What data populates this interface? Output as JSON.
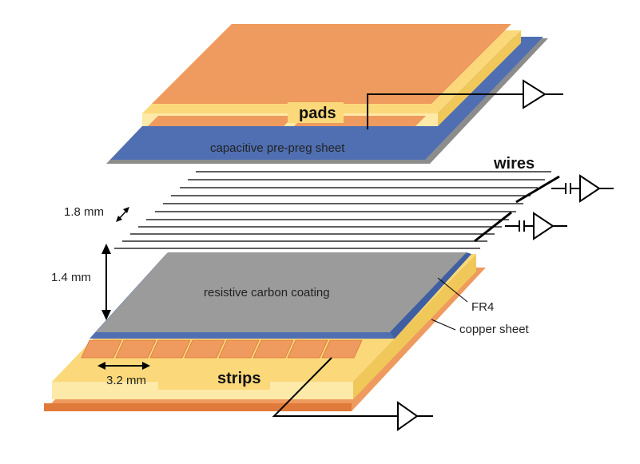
{
  "labels": {
    "pads": "pads",
    "prepreg": "capacitive pre-preg sheet",
    "wires": "wires",
    "wire_pitch": "1.8 mm",
    "gap": "1.4 mm",
    "coating": "resistive carbon coating",
    "fr4": "FR4",
    "copper": "copper sheet",
    "strip_pitch": "3.2 mm",
    "strips": "strips"
  },
  "colors": {
    "orange": "#ef9a5e",
    "orange_dark": "#e07a3a",
    "yellow": "#fbd97a",
    "yellow_light": "#fde9a8",
    "blue": "#4f6fb2",
    "gray": "#9b9b9b",
    "gray_dark": "#6e6e6e",
    "ink": "#000000"
  }
}
